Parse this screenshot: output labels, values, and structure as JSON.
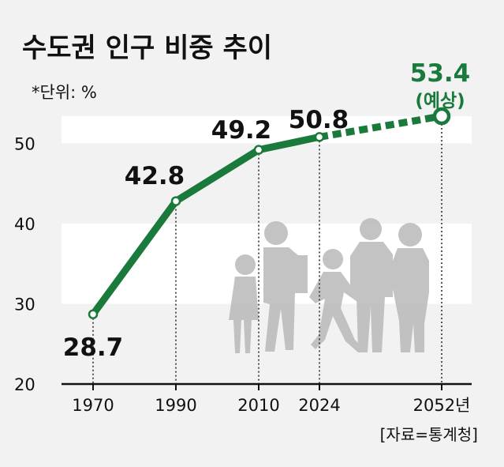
{
  "title": "수도권 인구 비중 추이",
  "unit": "*단위: %",
  "source": "[자료=통계청]",
  "colors": {
    "line": "#1a7a3c",
    "band": "#ffffff",
    "background": "#f2f2f2",
    "silhouette": "#b9b9b9"
  },
  "chart_data": {
    "type": "line",
    "title": "수도권 인구 비중 추이",
    "ylabel": "*단위: %",
    "ylim": [
      20,
      53.4
    ],
    "yticks": [
      20,
      30,
      40,
      50
    ],
    "categories": [
      "1970",
      "1990",
      "2010",
      "2024",
      "2052년"
    ],
    "x": [
      1970,
      1990,
      2010,
      2024,
      2052
    ],
    "values": [
      28.7,
      42.8,
      49.2,
      50.8,
      53.4
    ],
    "labels": [
      "28.7",
      "42.8",
      "49.2",
      "50.8",
      "53.4"
    ],
    "projection_note": "(예상)",
    "projected_from_index": 3,
    "grid_bands": [
      [
        30,
        40
      ],
      [
        50,
        53.4
      ]
    ]
  }
}
